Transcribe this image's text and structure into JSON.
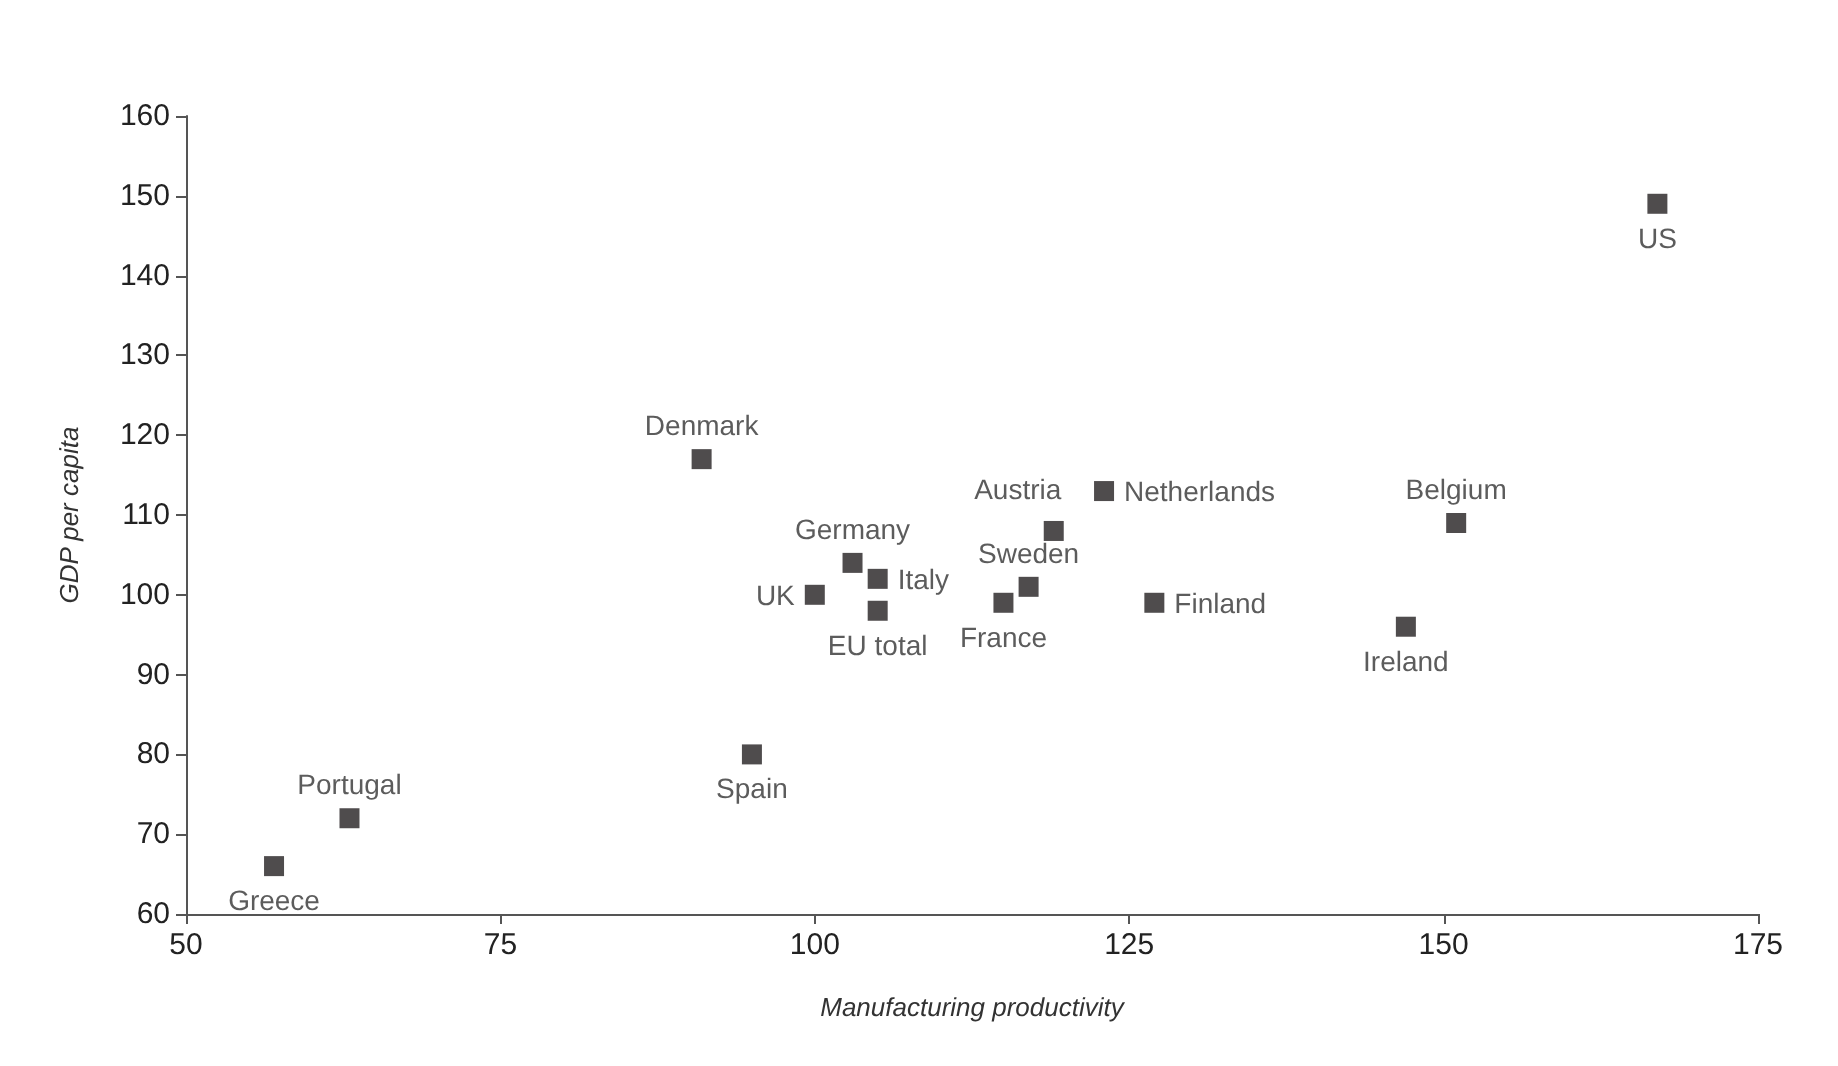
{
  "chart_data": {
    "type": "scatter",
    "xlabel": "Manufacturing productivity",
    "ylabel": "GDP per capita",
    "x": [
      57,
      63,
      91,
      95,
      100,
      103,
      105,
      105,
      115,
      117,
      119,
      123,
      127,
      147,
      151,
      167
    ],
    "values": [
      66,
      72,
      117,
      80,
      100,
      104,
      102,
      98,
      99,
      101,
      108,
      113,
      99,
      96,
      109,
      149
    ],
    "value_labels": [
      "Greece",
      "Portugal",
      "Denmark",
      "Spain",
      "UK",
      "Germany",
      "Italy",
      "EU total",
      "France",
      "Sweden",
      "Austria",
      "Netherlands",
      "Finland",
      "Ireland",
      "Belgium",
      "US"
    ],
    "color": "#231f20",
    "marker": "square",
    "grid": false,
    "xlim": [
      50,
      175
    ],
    "xticks": [
      50,
      75,
      100,
      125,
      150,
      175
    ],
    "ylim": [
      60,
      160
    ],
    "yticks": [
      60,
      70,
      80,
      90,
      100,
      110,
      120,
      130,
      140,
      150,
      160
    ]
  }
}
